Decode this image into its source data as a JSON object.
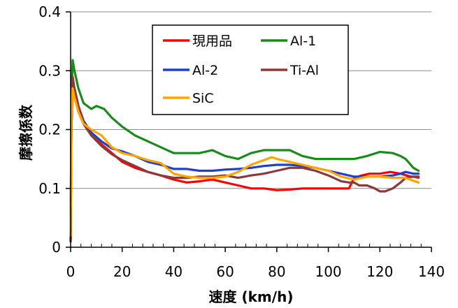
{
  "chart_data": {
    "type": "line",
    "title": "",
    "xlabel": "速度 (km/h)",
    "ylabel": "摩擦係数",
    "xlim": [
      0,
      140
    ],
    "ylim": [
      0,
      0.4
    ],
    "x_ticks": [
      0,
      20,
      40,
      60,
      80,
      100,
      120,
      140
    ],
    "y_ticks": [
      0,
      0.1,
      0.2,
      0.3,
      0.4
    ],
    "x_tick_labels": [
      "0",
      "20",
      "40",
      "60",
      "80",
      "100",
      "120",
      "140"
    ],
    "y_tick_labels": [
      "0",
      "0.1",
      "0.2",
      "0.3",
      "0.4"
    ],
    "grid": "horizontal",
    "legend_position": "top-center",
    "series": [
      {
        "name": "現用品",
        "color": "#ff0000",
        "x": [
          0,
          0.3,
          0.8,
          1.5,
          3,
          5,
          8,
          12,
          16,
          20,
          25,
          30,
          35,
          40,
          45,
          50,
          55,
          60,
          65,
          70,
          75,
          80,
          85,
          90,
          95,
          100,
          105,
          108,
          110,
          113,
          116,
          120,
          124,
          128,
          132,
          135
        ],
        "y": [
          0.01,
          0.2,
          0.275,
          0.26,
          0.23,
          0.21,
          0.19,
          0.175,
          0.16,
          0.145,
          0.135,
          0.128,
          0.122,
          0.115,
          0.11,
          0.112,
          0.115,
          0.11,
          0.105,
          0.1,
          0.1,
          0.097,
          0.098,
          0.1,
          0.1,
          0.1,
          0.1,
          0.1,
          0.118,
          0.122,
          0.125,
          0.125,
          0.128,
          0.125,
          0.12,
          0.12
        ]
      },
      {
        "name": "Al-1",
        "color": "#1a8a1a",
        "x": [
          0,
          0.3,
          0.8,
          1.5,
          3,
          5,
          8,
          10,
          13,
          16,
          20,
          25,
          30,
          35,
          40,
          45,
          50,
          55,
          60,
          65,
          70,
          75,
          80,
          85,
          90,
          95,
          100,
          105,
          110,
          115,
          120,
          125,
          128,
          130,
          133,
          135
        ],
        "y": [
          0.02,
          0.25,
          0.318,
          0.3,
          0.27,
          0.245,
          0.235,
          0.24,
          0.235,
          0.22,
          0.205,
          0.19,
          0.18,
          0.17,
          0.16,
          0.16,
          0.16,
          0.165,
          0.155,
          0.15,
          0.16,
          0.165,
          0.165,
          0.165,
          0.155,
          0.15,
          0.15,
          0.15,
          0.15,
          0.155,
          0.162,
          0.16,
          0.155,
          0.15,
          0.135,
          0.13
        ]
      },
      {
        "name": "Al-2",
        "color": "#1f3fd0",
        "x": [
          0,
          0.3,
          0.8,
          1.5,
          3,
          5,
          8,
          12,
          16,
          20,
          25,
          30,
          35,
          40,
          45,
          50,
          55,
          60,
          65,
          70,
          75,
          80,
          85,
          90,
          95,
          100,
          105,
          110,
          115,
          120,
          125,
          128,
          130,
          133,
          135
        ],
        "y": [
          0.01,
          0.2,
          0.28,
          0.27,
          0.24,
          0.215,
          0.195,
          0.18,
          0.168,
          0.163,
          0.155,
          0.145,
          0.14,
          0.133,
          0.133,
          0.13,
          0.13,
          0.132,
          0.133,
          0.135,
          0.138,
          0.14,
          0.14,
          0.138,
          0.135,
          0.13,
          0.125,
          0.12,
          0.12,
          0.12,
          0.122,
          0.125,
          0.128,
          0.125,
          0.125
        ]
      },
      {
        "name": "Ti-Al",
        "color": "#8b3a3a",
        "x": [
          0,
          0.3,
          0.8,
          1.5,
          3,
          5,
          8,
          12,
          16,
          20,
          25,
          30,
          35,
          40,
          45,
          50,
          55,
          60,
          65,
          70,
          75,
          80,
          85,
          90,
          95,
          100,
          105,
          108,
          110,
          112,
          115,
          118,
          120,
          122,
          125,
          128,
          130,
          133,
          135
        ],
        "y": [
          0.01,
          0.2,
          0.29,
          0.27,
          0.24,
          0.21,
          0.19,
          0.172,
          0.158,
          0.148,
          0.138,
          0.128,
          0.122,
          0.118,
          0.118,
          0.12,
          0.12,
          0.122,
          0.118,
          0.122,
          0.125,
          0.13,
          0.135,
          0.135,
          0.13,
          0.122,
          0.112,
          0.11,
          0.11,
          0.105,
          0.105,
          0.1,
          0.095,
          0.095,
          0.1,
          0.11,
          0.118,
          0.12,
          0.118
        ]
      },
      {
        "name": "SiC",
        "color": "#ffa500",
        "x": [
          0,
          0.3,
          0.8,
          1.5,
          3,
          5,
          8,
          12,
          16,
          20,
          25,
          30,
          35,
          40,
          45,
          50,
          55,
          60,
          65,
          70,
          75,
          78,
          80,
          85,
          90,
          95,
          100,
          105,
          110,
          115,
          120,
          125,
          130,
          133,
          135
        ],
        "y": [
          0.02,
          0.22,
          0.27,
          0.255,
          0.23,
          0.21,
          0.2,
          0.19,
          0.17,
          0.16,
          0.155,
          0.148,
          0.143,
          0.125,
          0.12,
          0.118,
          0.118,
          0.12,
          0.128,
          0.14,
          0.148,
          0.153,
          0.15,
          0.145,
          0.14,
          0.135,
          0.13,
          0.12,
          0.115,
          0.12,
          0.12,
          0.118,
          0.118,
          0.113,
          0.11
        ]
      }
    ]
  }
}
